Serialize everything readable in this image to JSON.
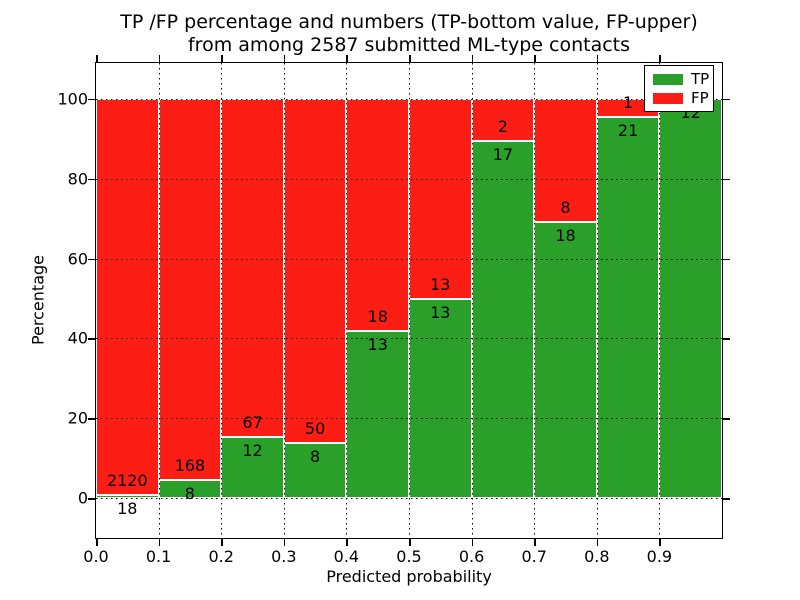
{
  "chart_data": {
    "type": "bar",
    "stacked": true,
    "normalized": "percent",
    "title_line1": "TP /FP percentage and numbers (TP-bottom value, FP-upper)",
    "title_line2": "from among 2587 submitted ML-type contacts",
    "xlabel": "Predicted probability",
    "ylabel": "Percentage",
    "total_contacts": 2587,
    "categories": [
      "0.0-0.1",
      "0.1-0.2",
      "0.2-0.3",
      "0.3-0.4",
      "0.4-0.5",
      "0.5-0.6",
      "0.6-0.7",
      "0.7-0.8",
      "0.8-0.9",
      "0.9-1.0"
    ],
    "x_bin_edges": [
      0.0,
      0.1,
      0.2,
      0.3,
      0.4,
      0.5,
      0.6,
      0.7,
      0.8,
      0.9,
      1.0
    ],
    "series": [
      {
        "name": "TP",
        "color": "#2aa02a",
        "values": [
          18,
          8,
          12,
          8,
          13,
          13,
          17,
          18,
          21,
          12
        ]
      },
      {
        "name": "FP",
        "color": "#fc1e14",
        "values": [
          2120,
          168,
          67,
          50,
          18,
          13,
          2,
          8,
          1,
          0
        ]
      }
    ],
    "tp_percent": [
      0.84,
      4.55,
      15.19,
      13.79,
      41.94,
      50.0,
      89.47,
      69.23,
      95.45,
      100.0
    ],
    "x_tick_labels": [
      "0.0",
      "0.1",
      "0.2",
      "0.3",
      "0.4",
      "0.5",
      "0.6",
      "0.7",
      "0.8",
      "0.9"
    ],
    "y_ticks": [
      0,
      20,
      40,
      60,
      80,
      100
    ],
    "xlim": [
      0.0,
      1.0
    ],
    "ylim": [
      -10,
      109
    ],
    "grid": "dotted-black-on-top",
    "legend_position": "upper-right",
    "bar_edge_color": "#ffffff",
    "text_color": "#000000",
    "background_color": "#ffffff"
  }
}
